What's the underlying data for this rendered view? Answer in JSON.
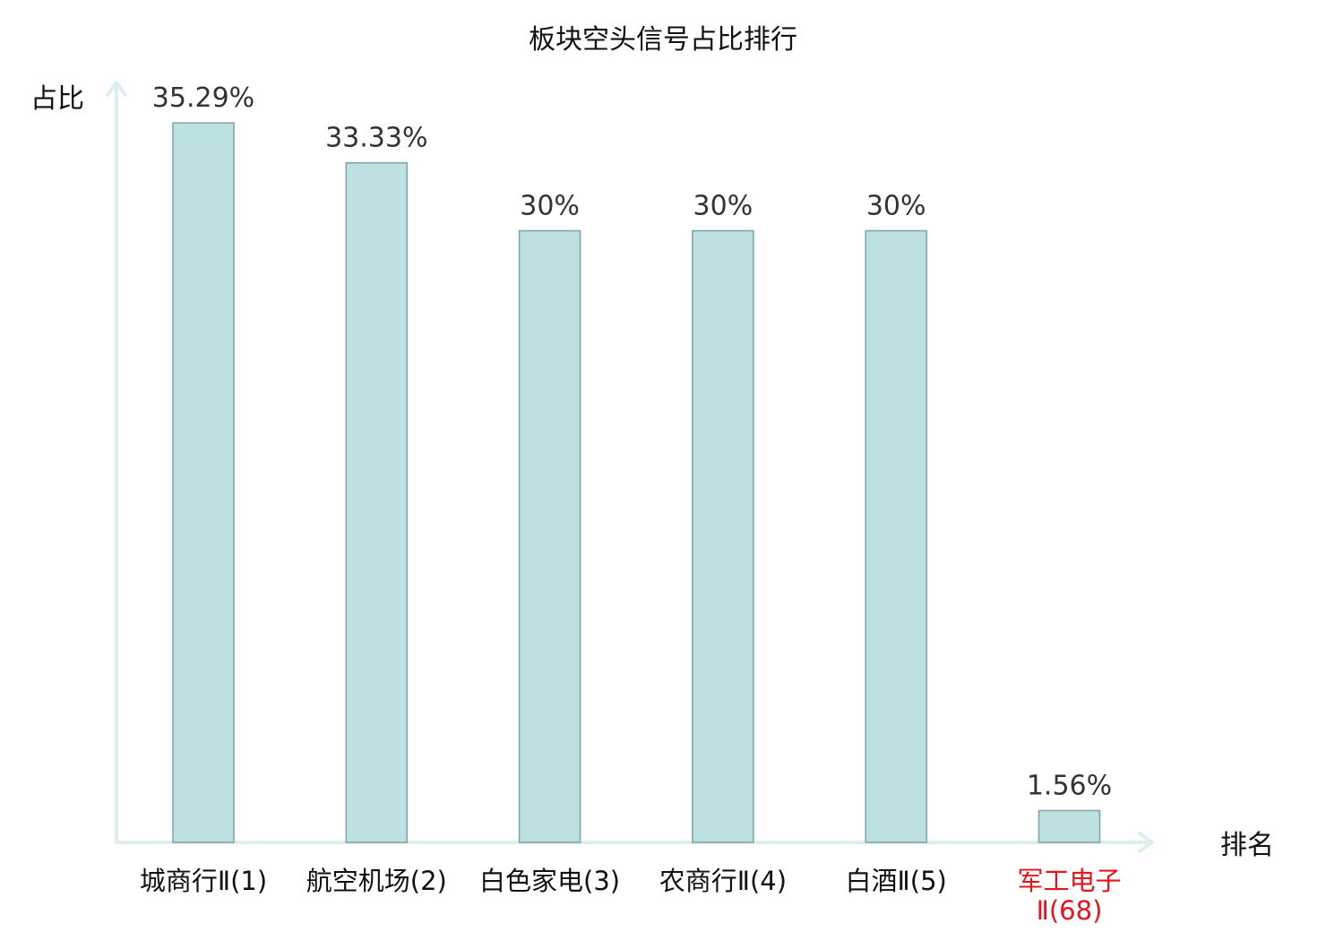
{
  "chart_data": {
    "type": "bar",
    "title": "板块空头信号占比排行",
    "ylabel": "占比",
    "xlabel": "排名",
    "categories": [
      {
        "name": "城商行Ⅱ(1)",
        "highlight": false
      },
      {
        "name": "航空机场(2)",
        "highlight": false
      },
      {
        "name": "白色家电(3)",
        "highlight": false
      },
      {
        "name": "农商行Ⅱ(4)",
        "highlight": false
      },
      {
        "name": "白酒Ⅱ(5)",
        "highlight": false
      },
      {
        "name": "军工电子Ⅱ(68)",
        "lines": [
          "军工电子",
          "Ⅱ(68)"
        ],
        "highlight": true
      }
    ],
    "values": [
      35.29,
      33.33,
      30,
      30,
      30,
      1.56
    ],
    "value_labels": [
      "35.29%",
      "33.33%",
      "30%",
      "30%",
      "30%",
      "1.56%"
    ],
    "ylim": [
      0,
      40
    ],
    "grid": false,
    "colors": {
      "bar_fill": "#bde0e2",
      "bar_stroke": "#7fa3a5",
      "axis": "#dcefed",
      "text": "#111111",
      "value_label": "#333333",
      "highlight": "#e8141b"
    }
  }
}
